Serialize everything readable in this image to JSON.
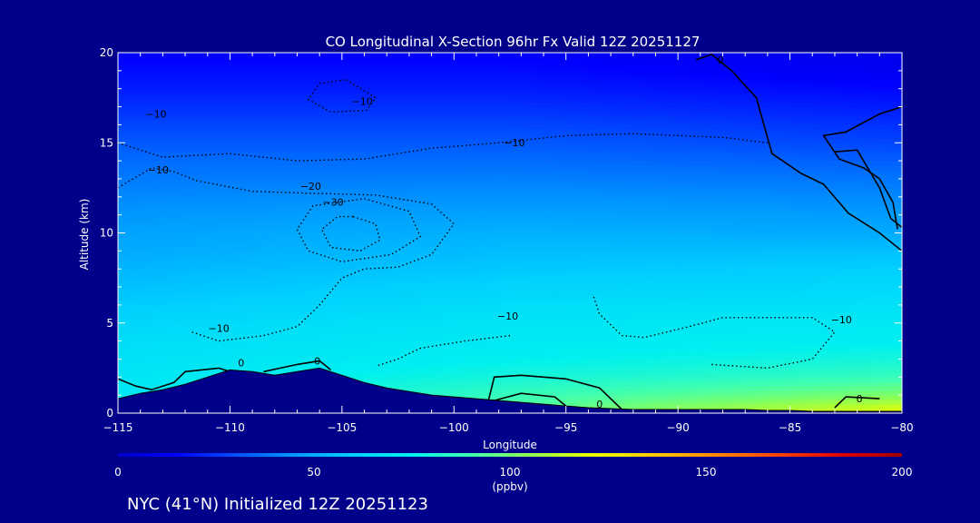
{
  "chart_data": {
    "type": "heatmap",
    "title": "CO Longitudinal X-Section 96hr  Fx Valid 12Z 20251127",
    "xlabel": "Longitude",
    "ylabel": "Altitude (km)",
    "xlim": [
      -115,
      -80
    ],
    "ylim": [
      0,
      20
    ],
    "x_ticks": [
      {
        "value": -115,
        "label": "−115"
      },
      {
        "value": -110,
        "label": "−110"
      },
      {
        "value": -105,
        "label": "−105"
      },
      {
        "value": -100,
        "label": "−100"
      },
      {
        "value": -95,
        "label": "−95"
      },
      {
        "value": -90,
        "label": "−90"
      },
      {
        "value": -85,
        "label": "−85"
      },
      {
        "value": -80,
        "label": "−80"
      }
    ],
    "y_ticks": [
      {
        "value": 0,
        "label": "0"
      },
      {
        "value": 5,
        "label": "5"
      },
      {
        "value": 10,
        "label": "10"
      },
      {
        "value": 15,
        "label": "15"
      },
      {
        "value": 20,
        "label": "20"
      }
    ],
    "colorbar": {
      "range": [
        0,
        200
      ],
      "unit": "(ppbv)",
      "ticks": [
        {
          "value": 0,
          "label": "0"
        },
        {
          "value": 50,
          "label": "50"
        },
        {
          "value": 100,
          "label": "100"
        },
        {
          "value": 150,
          "label": "150"
        },
        {
          "value": 200,
          "label": "200"
        }
      ],
      "stops": [
        {
          "value": 0,
          "color": "#0000c8"
        },
        {
          "value": 15,
          "color": "#0000ff"
        },
        {
          "value": 30,
          "color": "#0050ff"
        },
        {
          "value": 45,
          "color": "#0098ff"
        },
        {
          "value": 60,
          "color": "#00d0ff"
        },
        {
          "value": 75,
          "color": "#00f0f0"
        },
        {
          "value": 90,
          "color": "#40ffb0"
        },
        {
          "value": 105,
          "color": "#90ff50"
        },
        {
          "value": 120,
          "color": "#e8ff00"
        },
        {
          "value": 140,
          "color": "#ffc000"
        },
        {
          "value": 165,
          "color": "#ff5000"
        },
        {
          "value": 185,
          "color": "#e00000"
        },
        {
          "value": 200,
          "color": "#a00000"
        }
      ]
    },
    "co_profile": {
      "comment": "Approximate CO mixing ratio (ppbv) vs altitude (km), sampled at three longitudes",
      "altitudes_km": [
        0,
        1,
        2,
        3,
        4,
        5,
        6,
        7,
        8,
        9,
        10,
        11,
        12,
        13,
        14,
        15,
        16,
        17,
        18,
        19,
        20
      ],
      "longitudes": [
        -115,
        -97.5,
        -80
      ],
      "values": [
        [
          70,
          95,
          122
        ],
        [
          70,
          88,
          102
        ],
        [
          70,
          80,
          88
        ],
        [
          68,
          75,
          80
        ],
        [
          66,
          72,
          74
        ],
        [
          63,
          70,
          72
        ],
        [
          59,
          66,
          68
        ],
        [
          56,
          62,
          64
        ],
        [
          53,
          58,
          60
        ],
        [
          50,
          55,
          56
        ],
        [
          48,
          52,
          50
        ],
        [
          45,
          48,
          46
        ],
        [
          42,
          44,
          42
        ],
        [
          39,
          40,
          38
        ],
        [
          36,
          36,
          33
        ],
        [
          32,
          32,
          28
        ],
        [
          28,
          28,
          24
        ],
        [
          24,
          24,
          20
        ],
        [
          20,
          20,
          16
        ],
        [
          17,
          17,
          12
        ],
        [
          14,
          14,
          10
        ]
      ]
    },
    "terrain": {
      "lon": [
        -115,
        -114,
        -113,
        -112,
        -111,
        -110,
        -109,
        -108,
        -107,
        -106,
        -105,
        -104,
        -103,
        -102,
        -101,
        -100,
        -99,
        -98,
        -97,
        -96,
        -95,
        -94,
        -93,
        -92,
        -91,
        -90,
        -89,
        -88,
        -87,
        -86,
        -85,
        -84,
        -83,
        -82,
        -81,
        -80
      ],
      "alt_km": [
        0.8,
        1.1,
        1.3,
        1.6,
        2.0,
        2.4,
        2.3,
        2.1,
        2.3,
        2.5,
        2.1,
        1.7,
        1.4,
        1.2,
        1.0,
        0.9,
        0.8,
        0.7,
        0.6,
        0.5,
        0.4,
        0.3,
        0.25,
        0.2,
        0.2,
        0.2,
        0.2,
        0.2,
        0.2,
        0.15,
        0.15,
        0.1,
        0.1,
        0.1,
        0.1,
        0.1
      ]
    },
    "contours": {
      "comment": "Contour lines of CO change (ppbv); solid = 0, dotted = negative",
      "lines": [
        {
          "level": 0,
          "style": "solid",
          "points": [
            [
              -115,
              1.9
            ],
            [
              -114.2,
              1.5
            ],
            [
              -113.5,
              1.3
            ],
            [
              -112.5,
              1.7
            ],
            [
              -112,
              2.3
            ],
            [
              -110.5,
              2.5
            ],
            [
              -110,
              2.3
            ]
          ]
        },
        {
          "level": 0,
          "style": "solid",
          "points": [
            [
              -108.5,
              2.3
            ],
            [
              -107,
              2.7
            ],
            [
              -106,
              2.9
            ],
            [
              -105.5,
              2.4
            ]
          ]
        },
        {
          "level": 0,
          "style": "solid",
          "points": [
            [
              -98.5,
              0.5
            ],
            [
              -98.2,
              2.0
            ],
            [
              -97,
              2.1
            ],
            [
              -95,
              1.9
            ],
            [
              -93.5,
              1.4
            ],
            [
              -92.5,
              0.2
            ]
          ]
        },
        {
          "level": 0,
          "style": "solid",
          "points": [
            [
              -98.5,
              0.6
            ],
            [
              -97,
              1.1
            ],
            [
              -95.5,
              0.9
            ],
            [
              -95,
              0.4
            ]
          ]
        },
        {
          "level": 0,
          "style": "solid",
          "points": [
            [
              -83,
              0.3
            ],
            [
              -82.5,
              0.9
            ],
            [
              -81,
              0.8
            ]
          ]
        },
        {
          "level": 0,
          "style": "solid",
          "points": [
            [
              -89.2,
              19.6
            ],
            [
              -88.5,
              19.9
            ],
            [
              -87.6,
              19.0
            ],
            [
              -86.5,
              17.5
            ],
            [
              -85.8,
              14.4
            ],
            [
              -84.5,
              13.3
            ],
            [
              -83.5,
              12.7
            ],
            [
              -82.4,
              11.1
            ],
            [
              -81,
              10.0
            ],
            [
              -80,
              9.0
            ]
          ]
        },
        {
          "level": 0,
          "style": "solid",
          "points": [
            [
              -80,
              17.0
            ],
            [
              -81,
              16.6
            ],
            [
              -82.5,
              15.6
            ],
            [
              -83.5,
              15.4
            ],
            [
              -82.8,
              14.1
            ],
            [
              -81.7,
              13.6
            ],
            [
              -81,
              13.0
            ],
            [
              -80.4,
              11.7
            ],
            [
              -80.2,
              10.2
            ]
          ]
        },
        {
          "level": 0,
          "style": "solid",
          "points": [
            [
              -83,
              14.5
            ],
            [
              -82,
              14.6
            ],
            [
              -81,
              12.5
            ],
            [
              -80.5,
              10.8
            ],
            [
              -80,
              10.3
            ]
          ]
        },
        {
          "level": -10,
          "style": "dotted",
          "points": [
            [
              -115,
              12.5
            ],
            [
              -113.5,
              13.6
            ],
            [
              -112.5,
              13.4
            ],
            [
              -111.5,
              12.9
            ],
            [
              -109,
              12.3
            ],
            [
              -106.5,
              12.2
            ],
            [
              -103.5,
              12.1
            ],
            [
              -101,
              11.6
            ],
            [
              -100,
              10.5
            ],
            [
              -101,
              8.8
            ],
            [
              -102.5,
              8.1
            ],
            [
              -104,
              8.0
            ],
            [
              -105,
              7.5
            ],
            [
              -106,
              6.0
            ],
            [
              -107,
              4.8
            ],
            [
              -108.5,
              4.3
            ],
            [
              -110.5,
              4.0
            ],
            [
              -111.7,
              4.5
            ]
          ]
        },
        {
          "level": -10,
          "style": "dotted",
          "points": [
            [
              -104.8,
              18.5
            ],
            [
              -103.5,
              17.5
            ],
            [
              -103.9,
              16.8
            ],
            [
              -105.5,
              16.7
            ],
            [
              -106.5,
              17.4
            ],
            [
              -106,
              18.3
            ],
            [
              -104.8,
              18.5
            ]
          ]
        },
        {
          "level": -20,
          "style": "dotted",
          "points": [
            [
              -104,
              11.9
            ],
            [
              -102,
              11.2
            ],
            [
              -101.5,
              9.8
            ],
            [
              -102.8,
              8.8
            ],
            [
              -105,
              8.4
            ],
            [
              -106.5,
              9.0
            ],
            [
              -107,
              10.2
            ],
            [
              -106.3,
              11.5
            ],
            [
              -104,
              11.9
            ]
          ]
        },
        {
          "level": -30,
          "style": "dotted",
          "points": [
            [
              -104.5,
              10.9
            ],
            [
              -103.5,
              10.5
            ],
            [
              -103.3,
              9.6
            ],
            [
              -104.2,
              9.0
            ],
            [
              -105.5,
              9.2
            ],
            [
              -105.9,
              10.2
            ],
            [
              -105.2,
              10.9
            ],
            [
              -104.5,
              10.9
            ]
          ]
        },
        {
          "level": -10,
          "style": "dotted",
          "points": [
            [
              -97.5,
              4.3
            ],
            [
              -99.5,
              4.0
            ],
            [
              -101.5,
              3.6
            ],
            [
              -102.5,
              3.0
            ],
            [
              -103.5,
              2.6
            ]
          ]
        },
        {
          "level": -10,
          "style": "dotted",
          "points": [
            [
              -88.5,
              2.7
            ],
            [
              -86,
              2.5
            ],
            [
              -84,
              3.0
            ],
            [
              -83,
              4.5
            ],
            [
              -84,
              5.3
            ],
            [
              -86,
              5.3
            ],
            [
              -88,
              5.3
            ],
            [
              -89.5,
              4.8
            ],
            [
              -91.5,
              4.2
            ],
            [
              -92.5,
              4.3
            ],
            [
              -93.5,
              5.5
            ],
            [
              -93.8,
              6.6
            ]
          ]
        },
        {
          "level": -10,
          "style": "dotted",
          "points": [
            [
              -115,
              15.0
            ],
            [
              -113,
              14.2
            ],
            [
              -110,
              14.4
            ],
            [
              -107,
              14.0
            ],
            [
              -104,
              14.1
            ],
            [
              -101,
              14.7
            ],
            [
              -98,
              15.0
            ],
            [
              -95,
              15.4
            ],
            [
              -92,
              15.5
            ],
            [
              -88,
              15.3
            ],
            [
              -86,
              15.0
            ]
          ]
        }
      ],
      "labels": [
        {
          "text": "−10",
          "lon": -113.3,
          "alt": 16.4
        },
        {
          "text": "−10",
          "lon": -113.2,
          "alt": 13.3
        },
        {
          "text": "−10",
          "lon": -104.1,
          "alt": 17.1
        },
        {
          "text": "−10",
          "lon": -97.3,
          "alt": 14.8
        },
        {
          "text": "−20",
          "lon": -106.4,
          "alt": 12.4
        },
        {
          "text": "−30",
          "lon": -105.4,
          "alt": 11.5
        },
        {
          "text": "−10",
          "lon": -110.5,
          "alt": 4.5
        },
        {
          "text": "−10",
          "lon": -97.6,
          "alt": 5.2
        },
        {
          "text": "−10",
          "lon": -82.7,
          "alt": 5.0
        },
        {
          "text": "0",
          "lon": -109.5,
          "alt": 2.6
        },
        {
          "text": "0",
          "lon": -106.1,
          "alt": 2.7
        },
        {
          "text": "0",
          "lon": -93.5,
          "alt": 0.3
        },
        {
          "text": "0",
          "lon": -81.9,
          "alt": 0.6
        },
        {
          "text": "0",
          "lon": -88.1,
          "alt": 19.4
        }
      ]
    }
  },
  "footer": {
    "location_label": "NYC (41°N) Initialized 12Z 20251123"
  }
}
